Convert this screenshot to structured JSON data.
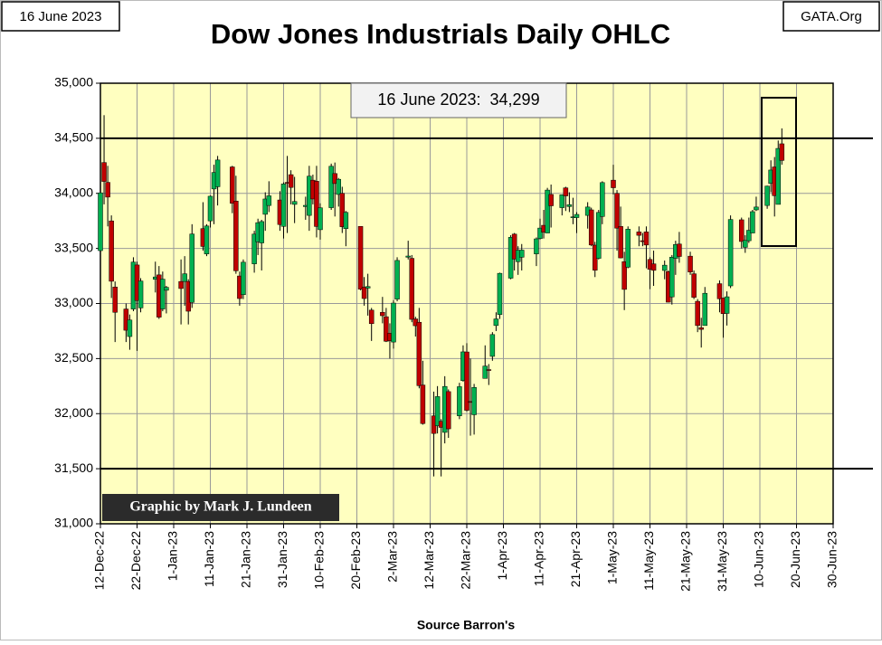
{
  "chart_data": {
    "type": "candlestick",
    "title": "Dow Jones Industrials Daily OHLC",
    "date_label": "16 June 2023",
    "source_site": "GATA.Org",
    "annotation": "16 June 2023:  34,299",
    "credit": "Graphic by Mark J. Lundeen",
    "xlabel": "Source Barron's",
    "up_color": "#00b050",
    "down_color": "#c00000",
    "background": "#ffffc0",
    "grid": true,
    "reference_lines": [
      34500,
      31500
    ],
    "xlim": [
      "2022-12-12",
      "2023-06-30"
    ],
    "xticks": [
      {
        "value": "2022-12-12",
        "label": "12-Dec-22"
      },
      {
        "value": "2022-12-22",
        "label": "22-Dec-22"
      },
      {
        "value": "2023-01-01",
        "label": "1-Jan-23"
      },
      {
        "value": "2023-01-11",
        "label": "11-Jan-23"
      },
      {
        "value": "2023-01-21",
        "label": "21-Jan-23"
      },
      {
        "value": "2023-01-31",
        "label": "31-Jan-23"
      },
      {
        "value": "2023-02-10",
        "label": "10-Feb-23"
      },
      {
        "value": "2023-02-20",
        "label": "20-Feb-23"
      },
      {
        "value": "2023-03-02",
        "label": "2-Mar-23"
      },
      {
        "value": "2023-03-12",
        "label": "12-Mar-23"
      },
      {
        "value": "2023-03-22",
        "label": "22-Mar-23"
      },
      {
        "value": "2023-04-01",
        "label": "1-Apr-23"
      },
      {
        "value": "2023-04-11",
        "label": "11-Apr-23"
      },
      {
        "value": "2023-04-21",
        "label": "21-Apr-23"
      },
      {
        "value": "2023-05-01",
        "label": "1-May-23"
      },
      {
        "value": "2023-05-11",
        "label": "11-May-23"
      },
      {
        "value": "2023-05-21",
        "label": "21-May-23"
      },
      {
        "value": "2023-05-31",
        "label": "31-May-23"
      },
      {
        "value": "2023-06-10",
        "label": "10-Jun-23"
      },
      {
        "value": "2023-06-20",
        "label": "20-Jun-23"
      },
      {
        "value": "2023-06-30",
        "label": "30-Jun-23"
      }
    ],
    "ylim": [
      31000,
      35000
    ],
    "yticks": [
      {
        "value": 31000,
        "label": "31,000"
      },
      {
        "value": 31500,
        "label": "31,500"
      },
      {
        "value": 32000,
        "label": "32,000"
      },
      {
        "value": 32500,
        "label": "32,500"
      },
      {
        "value": 33000,
        "label": "33,000"
      },
      {
        "value": 33500,
        "label": "33,500"
      },
      {
        "value": 34000,
        "label": "34,000"
      },
      {
        "value": 34500,
        "label": "34,500"
      },
      {
        "value": 35000,
        "label": "35,000"
      }
    ],
    "x": [
      "2022-12-12",
      "2022-12-13",
      "2022-12-14",
      "2022-12-15",
      "2022-12-16",
      "2022-12-19",
      "2022-12-20",
      "2022-12-21",
      "2022-12-22",
      "2022-12-23",
      "2022-12-27",
      "2022-12-28",
      "2022-12-29",
      "2022-12-30",
      "2023-01-03",
      "2023-01-04",
      "2023-01-05",
      "2023-01-06",
      "2023-01-09",
      "2023-01-10",
      "2023-01-11",
      "2023-01-12",
      "2023-01-13",
      "2023-01-17",
      "2023-01-18",
      "2023-01-19",
      "2023-01-20",
      "2023-01-23",
      "2023-01-24",
      "2023-01-25",
      "2023-01-26",
      "2023-01-27",
      "2023-01-30",
      "2023-01-31",
      "2023-02-01",
      "2023-02-02",
      "2023-02-03",
      "2023-02-06",
      "2023-02-07",
      "2023-02-08",
      "2023-02-09",
      "2023-02-10",
      "2023-02-13",
      "2023-02-14",
      "2023-02-15",
      "2023-02-16",
      "2023-02-17",
      "2023-02-21",
      "2023-02-22",
      "2023-02-23",
      "2023-02-24",
      "2023-02-27",
      "2023-02-28",
      "2023-03-01",
      "2023-03-02",
      "2023-03-03",
      "2023-03-06",
      "2023-03-07",
      "2023-03-08",
      "2023-03-09",
      "2023-03-10",
      "2023-03-13",
      "2023-03-14",
      "2023-03-15",
      "2023-03-16",
      "2023-03-17",
      "2023-03-20",
      "2023-03-21",
      "2023-03-22",
      "2023-03-23",
      "2023-03-24",
      "2023-03-27",
      "2023-03-28",
      "2023-03-29",
      "2023-03-30",
      "2023-03-31",
      "2023-04-03",
      "2023-04-04",
      "2023-04-05",
      "2023-04-06",
      "2023-04-10",
      "2023-04-11",
      "2023-04-12",
      "2023-04-13",
      "2023-04-14",
      "2023-04-17",
      "2023-04-18",
      "2023-04-19",
      "2023-04-20",
      "2023-04-21",
      "2023-04-24",
      "2023-04-25",
      "2023-04-26",
      "2023-04-27",
      "2023-04-28",
      "2023-05-01",
      "2023-05-02",
      "2023-05-03",
      "2023-05-04",
      "2023-05-05",
      "2023-05-08",
      "2023-05-09",
      "2023-05-10",
      "2023-05-11",
      "2023-05-12",
      "2023-05-15",
      "2023-05-16",
      "2023-05-17",
      "2023-05-18",
      "2023-05-19",
      "2023-05-22",
      "2023-05-23",
      "2023-05-24",
      "2023-05-25",
      "2023-05-26",
      "2023-05-30",
      "2023-05-31",
      "2023-06-01",
      "2023-06-02",
      "2023-06-05",
      "2023-06-06",
      "2023-06-07",
      "2023-06-08",
      "2023-06-09",
      "2023-06-12",
      "2023-06-13",
      "2023-06-14",
      "2023-06-15",
      "2023-06-16"
    ],
    "open": [
      33480,
      34280,
      34100,
      33750,
      33150,
      32950,
      32700,
      32950,
      33350,
      32960,
      33220,
      33260,
      32950,
      33120,
      33200,
      33200,
      33200,
      33010,
      33680,
      33450,
      33750,
      34040,
      34060,
      34240,
      33930,
      33250,
      33080,
      33360,
      33560,
      33550,
      33810,
      33890,
      33940,
      33700,
      34100,
      34170,
      33900,
      33880,
      33800,
      34120,
      34110,
      33670,
      33870,
      34180,
      33990,
      34000,
      33680,
      33700,
      33150,
      33140,
      32940,
      32920,
      32880,
      32730,
      32650,
      33040,
      33420,
      33410,
      32860,
      32830,
      32260,
      31980,
      31890,
      31930,
      31830,
      32200,
      31980,
      32300,
      32560,
      32110,
      31990,
      32320,
      32400,
      32520,
      32800,
      32900,
      33230,
      33630,
      33380,
      33420,
      33450,
      33590,
      33710,
      33640,
      33990,
      33870,
      34050,
      33880,
      33780,
      33780,
      33800,
      33850,
      33530,
      33410,
      33790,
      34120,
      34000,
      33700,
      33380,
      33330,
      33650,
      33570,
      33650,
      33400,
      33360,
      33300,
      33290,
      33060,
      33410,
      33540,
      33430,
      33270,
      33020,
      32780,
      32800,
      33180,
      33050,
      32910,
      33160,
      33760,
      33510,
      33570,
      33640,
      33850,
      33890,
      34090,
      34240,
      33900,
      34450
    ],
    "high": [
      34020,
      34710,
      34250,
      33800,
      33200,
      33000,
      32900,
      33420,
      33380,
      33230,
      33380,
      33340,
      33290,
      33160,
      33400,
      33430,
      33220,
      33720,
      33920,
      33720,
      33980,
      34260,
      34340,
      34250,
      34160,
      33290,
      33400,
      33660,
      33770,
      33760,
      34010,
      34110,
      34020,
      34100,
      34340,
      34210,
      34150,
      33970,
      34250,
      34170,
      34250,
      33910,
      34270,
      34280,
      34140,
      34060,
      33840,
      33700,
      33240,
      33270,
      32960,
      33060,
      32960,
      32820,
      33030,
      33420,
      33570,
      33440,
      32880,
      32960,
      32480,
      32200,
      32250,
      31950,
      32340,
      32220,
      32280,
      32620,
      32640,
      32500,
      32270,
      32620,
      32450,
      32740,
      32920,
      33280,
      33620,
      33640,
      33520,
      33540,
      33600,
      33770,
      33850,
      34050,
      34080,
      33990,
      34060,
      34010,
      33960,
      33830,
      33920,
      33870,
      33560,
      33850,
      34110,
      34260,
      34030,
      33880,
      33470,
      33700,
      33700,
      33640,
      33700,
      33420,
      33480,
      33390,
      33300,
      33440,
      33570,
      33650,
      33470,
      33300,
      33040,
      32870,
      33150,
      33210,
      33050,
      33110,
      33800,
      33780,
      33620,
      33780,
      33850,
      33970,
      34070,
      34300,
      34330,
      34480,
      34590
    ],
    "low": [
      33470,
      33900,
      33700,
      33050,
      32650,
      32650,
      32580,
      32930,
      32570,
      32920,
      33100,
      32860,
      32930,
      32910,
      32810,
      32980,
      32810,
      32960,
      33480,
      33430,
      33690,
      33720,
      33890,
      33820,
      33270,
      32980,
      33040,
      33280,
      33440,
      33300,
      33660,
      33830,
      33660,
      33590,
      33640,
      33900,
      33730,
      33760,
      33660,
      33900,
      33600,
      33580,
      33850,
      33790,
      33880,
      33640,
      33520,
      33120,
      32980,
      32890,
      32660,
      32820,
      32650,
      32500,
      32590,
      33020,
      33400,
      32830,
      32700,
      32230,
      31900,
      31430,
      31820,
      31430,
      31730,
      31780,
      31950,
      32290,
      32020,
      31800,
      31810,
      32320,
      32260,
      32480,
      32750,
      32860,
      33220,
      33300,
      33260,
      33300,
      33340,
      33580,
      33590,
      33640,
      33690,
      33800,
      33840,
      33830,
      33720,
      33640,
      33680,
      33520,
      33240,
      33400,
      33720,
      33990,
      33480,
      33410,
      32940,
      33320,
      33520,
      33520,
      33320,
      33130,
      33160,
      33220,
      33010,
      32990,
      33260,
      33370,
      33260,
      33040,
      32740,
      32600,
      32800,
      32920,
      32690,
      32800,
      33140,
      33500,
      33460,
      33550,
      33640,
      33840,
      33860,
      34010,
      33790,
      33900,
      34260
    ],
    "close": [
      34005,
      34108,
      33966,
      33202,
      32920,
      32757,
      32850,
      33376,
      33027,
      33204,
      33241,
      32876,
      33221,
      33147,
      33136,
      33270,
      32930,
      33631,
      33518,
      33704,
      33974,
      34190,
      34303,
      33910,
      33297,
      33045,
      33375,
      33630,
      33734,
      33744,
      33949,
      33978,
      33717,
      34086,
      34093,
      34054,
      33926,
      33891,
      34156,
      33949,
      33699,
      33869,
      34246,
      34089,
      34128,
      33697,
      33827,
      33130,
      33045,
      33154,
      32817,
      32889,
      32657,
      32662,
      33004,
      33391,
      33431,
      32856,
      32798,
      32254,
      31910,
      31820,
      32155,
      31875,
      32247,
      31862,
      32245,
      32561,
      32030,
      32105,
      32238,
      32432,
      32394,
      32718,
      32860,
      33274,
      33601,
      33403,
      33483,
      33485,
      33587,
      33685,
      33647,
      34030,
      33887,
      33987,
      33977,
      33897,
      33787,
      33809,
      33876,
      33531,
      33302,
      33827,
      34098,
      34051,
      33684,
      33414,
      33128,
      33675,
      33619,
      33562,
      33531,
      33310,
      33301,
      33348,
      33012,
      33421,
      33536,
      33427,
      33286,
      33056,
      32800,
      32765,
      33093,
      33043,
      32908,
      33061,
      33763,
      33563,
      33573,
      33665,
      33834,
      33876,
      34066,
      34212,
      33979,
      34408,
      34299
    ]
  }
}
